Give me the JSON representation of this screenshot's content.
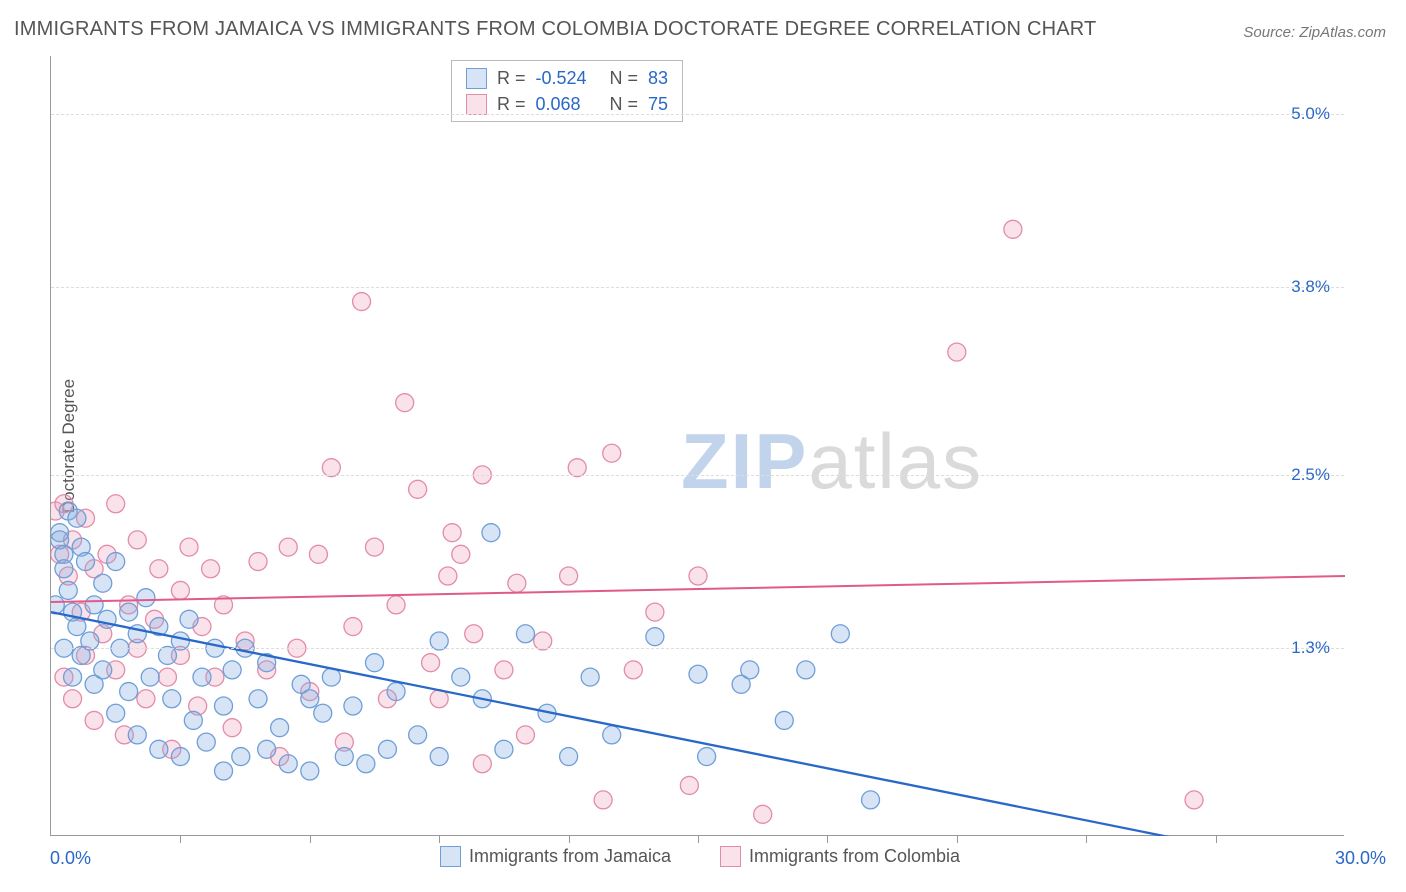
{
  "title": "IMMIGRANTS FROM JAMAICA VS IMMIGRANTS FROM COLOMBIA DOCTORATE DEGREE CORRELATION CHART",
  "source_prefix": "Source: ",
  "source": "ZipAtlas.com",
  "y_axis_label": "Doctorate Degree",
  "watermark_a": "ZIP",
  "watermark_b": "atlas",
  "chart": {
    "type": "scatter",
    "xlim": [
      0.0,
      30.0
    ],
    "ylim": [
      0.0,
      5.4
    ],
    "x_ticks_minor_step": 3.0,
    "x_labels": [
      {
        "v": 0.0,
        "t": "0.0%"
      },
      {
        "v": 30.0,
        "t": "30.0%"
      }
    ],
    "y_gridlines": [
      {
        "v": 1.3,
        "t": "1.3%"
      },
      {
        "v": 2.5,
        "t": "2.5%"
      },
      {
        "v": 3.8,
        "t": "3.8%"
      },
      {
        "v": 5.0,
        "t": "5.0%"
      }
    ],
    "background_color": "#ffffff",
    "grid_color": "#dddddd",
    "axis_color": "#999999",
    "tick_label_color": "#2968c8",
    "marker_radius": 9,
    "marker_stroke_width": 1.3,
    "series": [
      {
        "name": "Immigrants from Jamaica",
        "fill": "rgba(130,170,225,0.32)",
        "stroke": "#6f9fd8",
        "trend": {
          "y1": 1.55,
          "y2": 0.0,
          "x2_frac": 0.86,
          "dash_to": 1.0,
          "color": "#2968c8",
          "width": 2.3
        },
        "R": "-0.524",
        "N": "83",
        "points": [
          [
            0.1,
            1.6
          ],
          [
            0.2,
            2.1
          ],
          [
            0.2,
            2.05
          ],
          [
            0.3,
            1.95
          ],
          [
            0.3,
            1.85
          ],
          [
            0.3,
            1.3
          ],
          [
            0.4,
            2.25
          ],
          [
            0.4,
            1.7
          ],
          [
            0.5,
            1.55
          ],
          [
            0.5,
            1.1
          ],
          [
            0.6,
            2.2
          ],
          [
            0.6,
            1.45
          ],
          [
            0.7,
            2.0
          ],
          [
            0.7,
            1.25
          ],
          [
            0.8,
            1.9
          ],
          [
            0.9,
            1.35
          ],
          [
            1.0,
            1.6
          ],
          [
            1.0,
            1.05
          ],
          [
            1.2,
            1.75
          ],
          [
            1.2,
            1.15
          ],
          [
            1.3,
            1.5
          ],
          [
            1.5,
            1.9
          ],
          [
            1.5,
            0.85
          ],
          [
            1.6,
            1.3
          ],
          [
            1.8,
            1.55
          ],
          [
            1.8,
            1.0
          ],
          [
            2.0,
            1.4
          ],
          [
            2.0,
            0.7
          ],
          [
            2.2,
            1.65
          ],
          [
            2.3,
            1.1
          ],
          [
            2.5,
            1.45
          ],
          [
            2.5,
            0.6
          ],
          [
            2.7,
            1.25
          ],
          [
            2.8,
            0.95
          ],
          [
            3.0,
            1.35
          ],
          [
            3.0,
            0.55
          ],
          [
            3.2,
            1.5
          ],
          [
            3.3,
            0.8
          ],
          [
            3.5,
            1.1
          ],
          [
            3.6,
            0.65
          ],
          [
            3.8,
            1.3
          ],
          [
            4.0,
            0.9
          ],
          [
            4.0,
            0.45
          ],
          [
            4.2,
            1.15
          ],
          [
            4.4,
            0.55
          ],
          [
            4.5,
            1.3
          ],
          [
            4.8,
            0.95
          ],
          [
            5.0,
            0.6
          ],
          [
            5.0,
            1.2
          ],
          [
            5.3,
            0.75
          ],
          [
            5.5,
            0.5
          ],
          [
            5.8,
            1.05
          ],
          [
            6.0,
            0.95
          ],
          [
            6.0,
            0.45
          ],
          [
            6.3,
            0.85
          ],
          [
            6.5,
            1.1
          ],
          [
            6.8,
            0.55
          ],
          [
            7.0,
            0.9
          ],
          [
            7.3,
            0.5
          ],
          [
            7.5,
            1.2
          ],
          [
            7.8,
            0.6
          ],
          [
            8.0,
            1.0
          ],
          [
            8.5,
            0.7
          ],
          [
            9.0,
            1.35
          ],
          [
            9.0,
            0.55
          ],
          [
            9.5,
            1.1
          ],
          [
            10.0,
            0.95
          ],
          [
            10.2,
            2.1
          ],
          [
            10.5,
            0.6
          ],
          [
            11.0,
            1.4
          ],
          [
            11.5,
            0.85
          ],
          [
            12.0,
            0.55
          ],
          [
            12.5,
            1.1
          ],
          [
            13.0,
            0.7
          ],
          [
            14.0,
            1.38
          ],
          [
            15.0,
            1.12
          ],
          [
            15.2,
            0.55
          ],
          [
            16.0,
            1.05
          ],
          [
            16.2,
            1.15
          ],
          [
            17.0,
            0.8
          ],
          [
            17.5,
            1.15
          ],
          [
            18.3,
            1.4
          ],
          [
            19.0,
            0.25
          ]
        ]
      },
      {
        "name": "Immigrants from Colombia",
        "fill": "rgba(240,160,185,0.30)",
        "stroke": "#e38ca8",
        "trend": {
          "y1": 1.62,
          "y2": 1.8,
          "x2_frac": 1.0,
          "dash_to": 1.0,
          "color": "#e05a8a",
          "width": 2.0
        },
        "R": " 0.068",
        "N": "75",
        "points": [
          [
            0.1,
            2.25
          ],
          [
            0.2,
            1.95
          ],
          [
            0.3,
            2.3
          ],
          [
            0.3,
            1.1
          ],
          [
            0.4,
            1.8
          ],
          [
            0.5,
            2.05
          ],
          [
            0.5,
            0.95
          ],
          [
            0.7,
            1.55
          ],
          [
            0.8,
            2.2
          ],
          [
            0.8,
            1.25
          ],
          [
            1.0,
            1.85
          ],
          [
            1.0,
            0.8
          ],
          [
            1.2,
            1.4
          ],
          [
            1.3,
            1.95
          ],
          [
            1.5,
            1.15
          ],
          [
            1.5,
            2.3
          ],
          [
            1.7,
            0.7
          ],
          [
            1.8,
            1.6
          ],
          [
            2.0,
            1.3
          ],
          [
            2.0,
            2.05
          ],
          [
            2.2,
            0.95
          ],
          [
            2.4,
            1.5
          ],
          [
            2.5,
            1.85
          ],
          [
            2.7,
            1.1
          ],
          [
            2.8,
            0.6
          ],
          [
            3.0,
            1.7
          ],
          [
            3.0,
            1.25
          ],
          [
            3.2,
            2.0
          ],
          [
            3.4,
            0.9
          ],
          [
            3.5,
            1.45
          ],
          [
            3.7,
            1.85
          ],
          [
            3.8,
            1.1
          ],
          [
            4.0,
            1.6
          ],
          [
            4.2,
            0.75
          ],
          [
            4.5,
            1.35
          ],
          [
            4.8,
            1.9
          ],
          [
            5.0,
            1.15
          ],
          [
            5.3,
            0.55
          ],
          [
            5.7,
            1.3
          ],
          [
            6.0,
            1.0
          ],
          [
            6.5,
            2.55
          ],
          [
            6.8,
            0.65
          ],
          [
            7.0,
            1.45
          ],
          [
            7.2,
            3.7
          ],
          [
            7.5,
            2.0
          ],
          [
            7.8,
            0.95
          ],
          [
            8.0,
            1.6
          ],
          [
            8.2,
            3.0
          ],
          [
            8.5,
            2.4
          ],
          [
            8.8,
            1.2
          ],
          [
            9.0,
            0.95
          ],
          [
            9.2,
            1.8
          ],
          [
            9.3,
            2.1
          ],
          [
            9.5,
            1.95
          ],
          [
            9.8,
            1.4
          ],
          [
            10.0,
            2.5
          ],
          [
            10.0,
            0.5
          ],
          [
            10.5,
            1.15
          ],
          [
            10.8,
            1.75
          ],
          [
            11.0,
            0.7
          ],
          [
            11.4,
            1.35
          ],
          [
            12.0,
            1.8
          ],
          [
            12.2,
            2.55
          ],
          [
            12.8,
            0.25
          ],
          [
            13.0,
            2.65
          ],
          [
            13.5,
            1.15
          ],
          [
            14.0,
            1.55
          ],
          [
            14.8,
            0.35
          ],
          [
            15.0,
            1.8
          ],
          [
            16.5,
            0.15
          ],
          [
            21.0,
            3.35
          ],
          [
            22.3,
            4.2
          ],
          [
            26.5,
            0.25
          ],
          [
            5.5,
            2.0
          ],
          [
            6.2,
            1.95
          ]
        ]
      }
    ],
    "top_legend": {
      "r_label": "R =",
      "n_label": "N ="
    },
    "bottom_legend": true
  }
}
